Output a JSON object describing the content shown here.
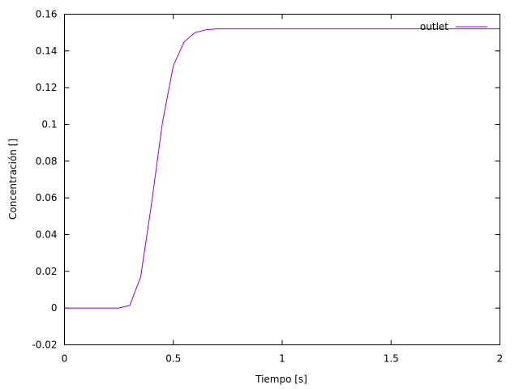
{
  "chart_data": {
    "type": "line",
    "title": "",
    "xlabel": "Tiempo [s]",
    "ylabel": "Concentración []",
    "xlim": [
      0,
      2
    ],
    "ylim": [
      -0.02,
      0.16
    ],
    "x_ticks": [
      0,
      0.5,
      1,
      1.5,
      2
    ],
    "x_tick_labels": [
      "0",
      "0.5",
      "1",
      "1.5",
      "2"
    ],
    "y_ticks": [
      -0.02,
      0,
      0.02,
      0.04,
      0.06,
      0.08,
      0.1,
      0.12,
      0.14,
      0.16
    ],
    "y_tick_labels": [
      "-0.02",
      "0",
      "0.02",
      "0.04",
      "0.06",
      "0.08",
      "0.1",
      "0.12",
      "0.14",
      "0.16"
    ],
    "grid": false,
    "legend_position": "top-right",
    "series": [
      {
        "name": "outlet",
        "color": "#9400d3",
        "x": [
          0,
          0.05,
          0.1,
          0.15,
          0.2,
          0.25,
          0.3,
          0.35,
          0.4,
          0.45,
          0.5,
          0.55,
          0.6,
          0.65,
          0.7,
          0.8,
          1.0,
          1.5,
          2.0
        ],
        "y": [
          0,
          0,
          0,
          0,
          0,
          0,
          0.0015,
          0.017,
          0.057,
          0.101,
          0.132,
          0.145,
          0.15,
          0.1515,
          0.152,
          0.152,
          0.152,
          0.152,
          0.152
        ]
      }
    ]
  }
}
